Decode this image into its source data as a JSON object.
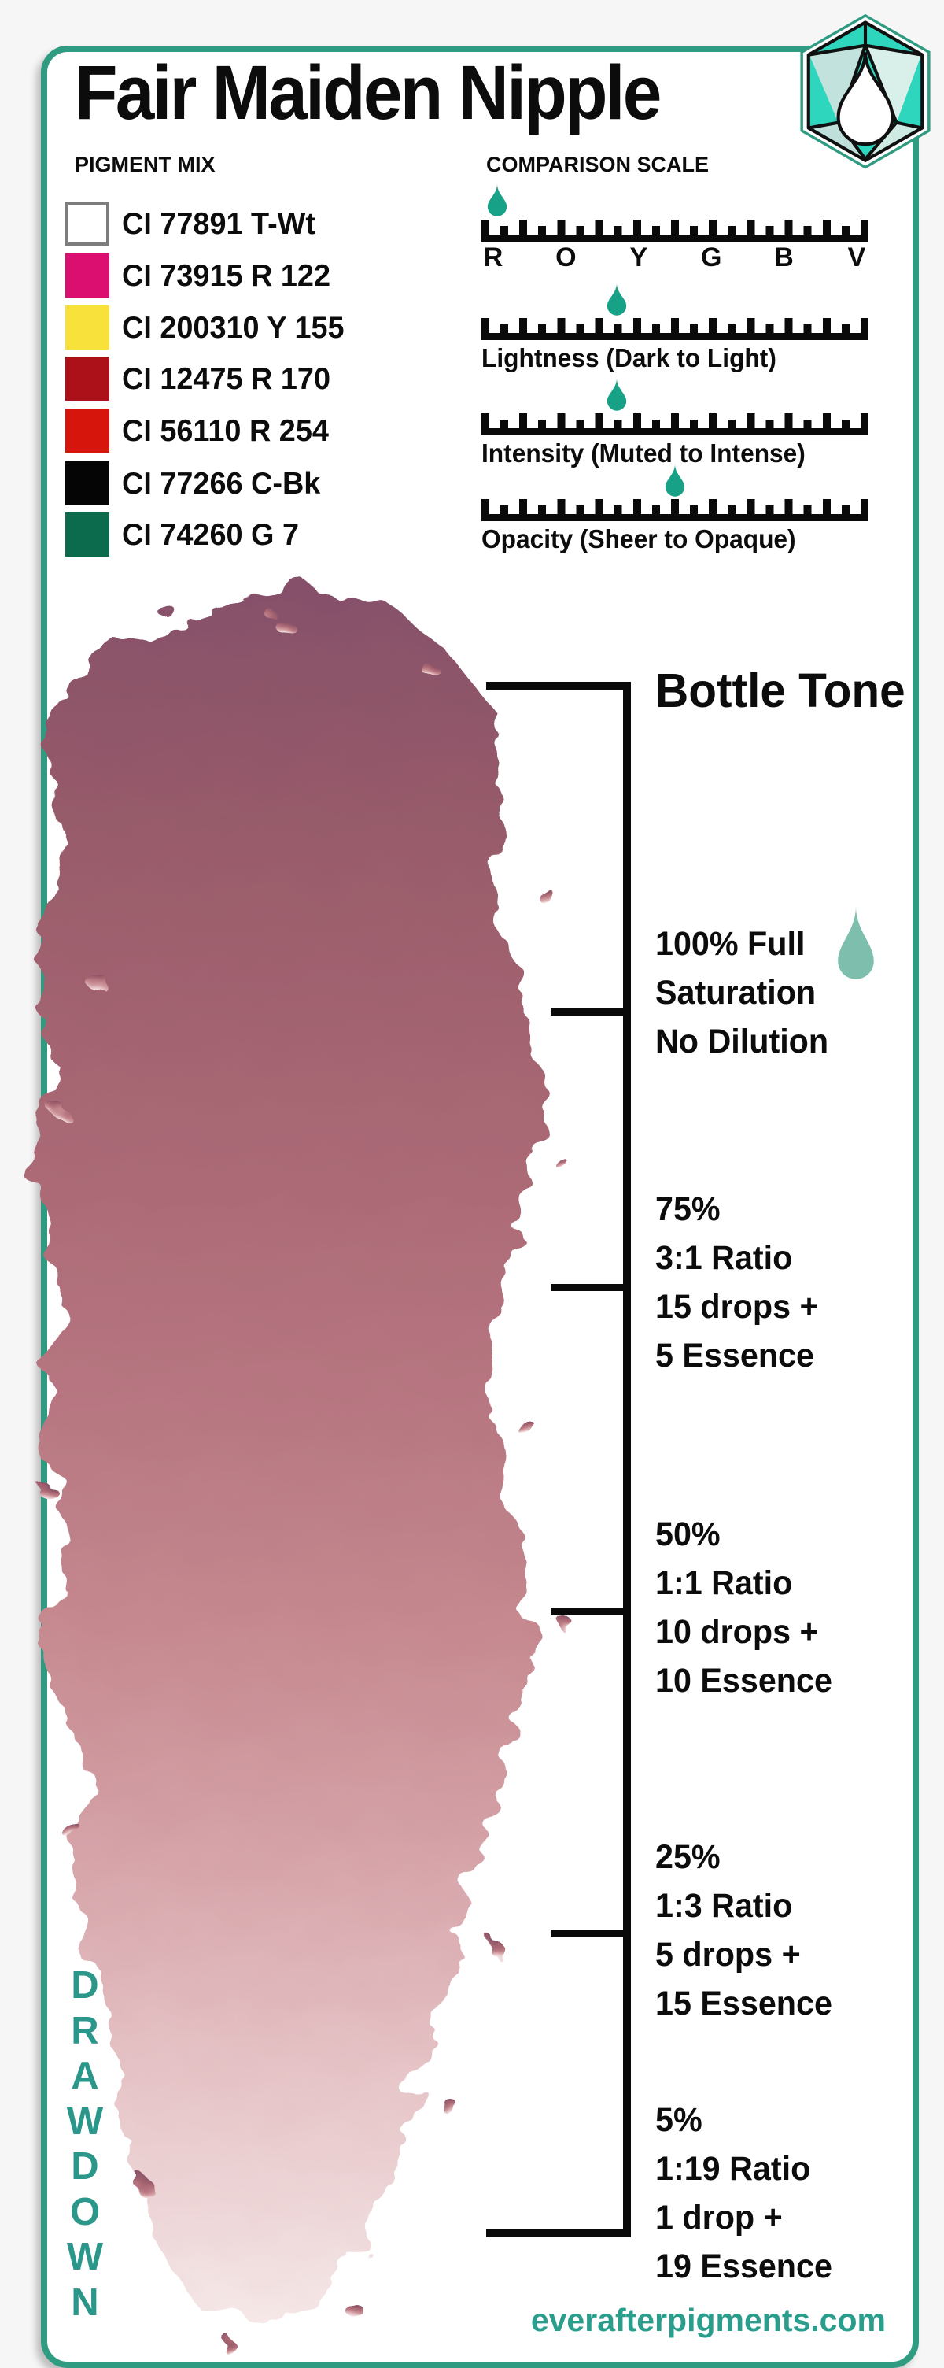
{
  "title": "Fair Maiden Nipple",
  "brand": {
    "website": "everafterpigments.com",
    "logo_icon": "gem-droplet"
  },
  "pigment_mix": {
    "heading": "PIGMENT MIX",
    "pigments": [
      {
        "code": "CI 77891 T-Wt",
        "swatch": "#FFFFFF"
      },
      {
        "code": "CI 73915 R 122",
        "swatch": "#DB0F70"
      },
      {
        "code": "CI 200310 Y 155",
        "swatch": "#F9E13C"
      },
      {
        "code": "CI 12475 R 170",
        "swatch": "#AC1019"
      },
      {
        "code": "CI 56110 R 254",
        "swatch": "#D6150C"
      },
      {
        "code": "CI 77266 C-Bk",
        "swatch": "#050505"
      },
      {
        "code": "CI 74260 G 7",
        "swatch": "#0B6B4C"
      }
    ]
  },
  "comparison_scale": {
    "heading": "COMPARISON SCALE",
    "scales": [
      {
        "name": "hue",
        "tick_labels": [
          "R",
          "O",
          "Y",
          "G",
          "B",
          "V"
        ],
        "marker_percent": 4
      },
      {
        "name": "lightness",
        "label": "Lightness (Dark to Light)",
        "marker_percent": 35
      },
      {
        "name": "intensity",
        "label": "Intensity (Muted to Intense)",
        "marker_percent": 35
      },
      {
        "name": "opacity",
        "label": "Opacity (Sheer to Opaque)",
        "marker_percent": 50
      }
    ]
  },
  "drawdown": {
    "vertical_label": "DRAWDOWN",
    "letters": [
      "D",
      "R",
      "A",
      "W",
      "D",
      "O",
      "W",
      "N"
    ],
    "steps": [
      {
        "name": "bottle-tone",
        "lines": [
          "Bottle Tone"
        ]
      },
      {
        "name": "100-percent",
        "lines": [
          "100% Full",
          "Saturation",
          "No Dilution"
        ]
      },
      {
        "name": "75-percent",
        "lines": [
          "75%",
          "3:1 Ratio",
          "15 drops +",
          "5 Essence"
        ]
      },
      {
        "name": "50-percent",
        "lines": [
          "50%",
          "1:1 Ratio",
          "10 drops +",
          "10 Essence"
        ]
      },
      {
        "name": "25-percent",
        "lines": [
          "25%",
          "1:3 Ratio",
          "5 drops +",
          "15 Essence"
        ]
      },
      {
        "name": "5-percent",
        "lines": [
          "5%",
          "1:19 Ratio",
          "1 drop +",
          "19 Essence"
        ]
      }
    ]
  },
  "colors": {
    "accent_teal_text": "#2B968A",
    "border_teal": "#2F9B80",
    "marker_droplet": "#17A287",
    "soft_droplet": "#7DBFAC",
    "drawdown_top": "#8A5166",
    "drawdown_bottom": "#F4E1E2"
  }
}
